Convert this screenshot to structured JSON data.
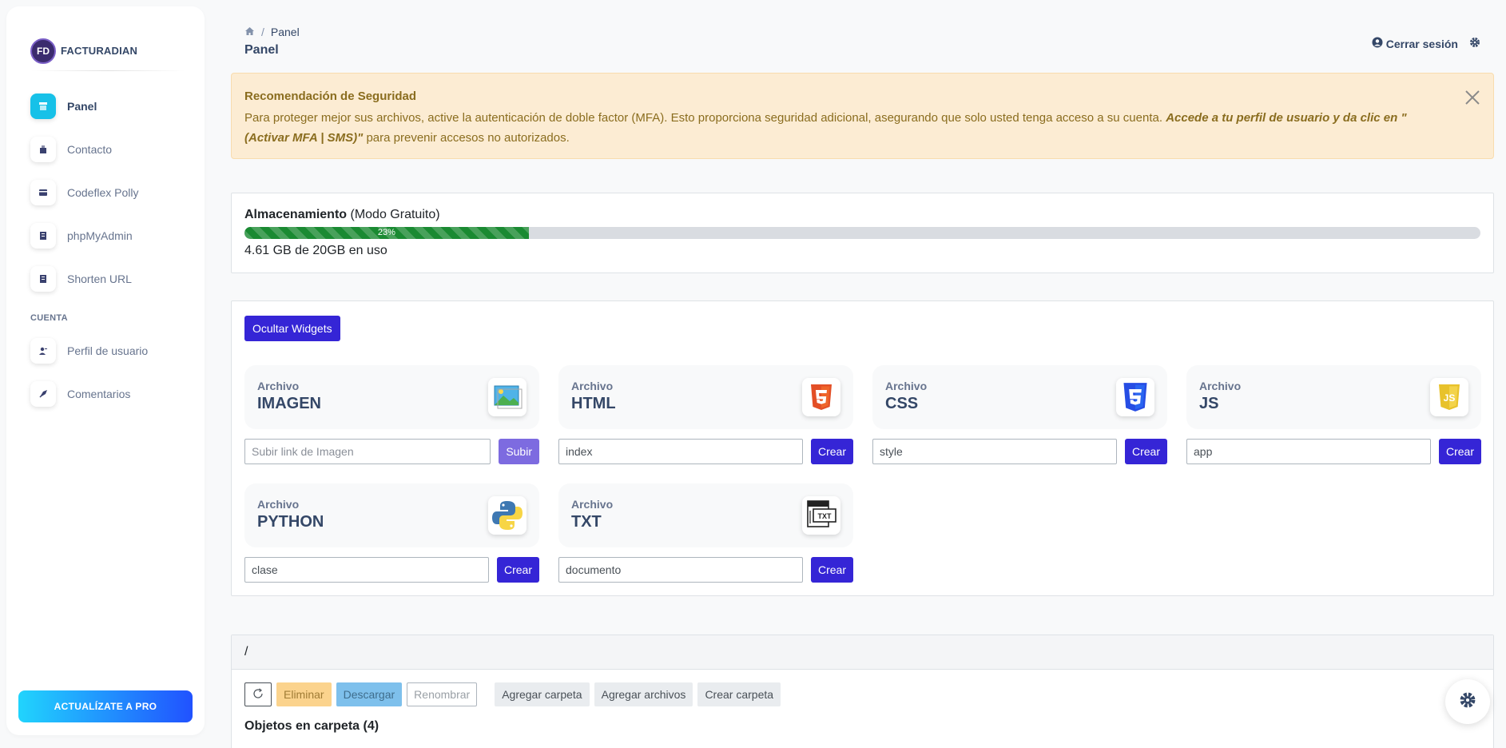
{
  "brand": {
    "logo_text": "FD",
    "name": "FACTURADIAN"
  },
  "sidebar": {
    "items": [
      {
        "label": "Panel",
        "icon": "shop-icon",
        "active": true
      },
      {
        "label": "Contacto",
        "icon": "office-icon"
      },
      {
        "label": "Codeflex Polly",
        "icon": "credit-card-icon"
      },
      {
        "label": "phpMyAdmin",
        "icon": "document-icon"
      },
      {
        "label": "Shorten URL",
        "icon": "document-icon"
      }
    ],
    "section_label": "CUENTA",
    "account_items": [
      {
        "label": "Perfil de usuario",
        "icon": "user-icon"
      },
      {
        "label": "Comentarios",
        "icon": "rocket-icon"
      }
    ],
    "upgrade_label": "ACTUALÍZATE A PRO"
  },
  "header": {
    "breadcrumb_current": "Panel",
    "breadcrumb_separator": "/",
    "page_title": "Panel",
    "logout_label": "Cerrar sesión"
  },
  "alert": {
    "title": "Recomendación de Seguridad",
    "text": "Para proteger mejor sus archivos, active la autenticación de doble factor (MFA). Esto proporciona seguridad adicional, asegurando que solo usted tenga acceso a su cuenta. ",
    "emphasis": "Accede a tu perfil de usuario y da clic en \"(Activar MFA | SMS)\"",
    "text_end": " para prevenir accesos no autorizados."
  },
  "storage": {
    "title": "Almacenamiento",
    "mode": "(Modo Gratuito)",
    "percent_label": "23%",
    "percent": 23,
    "usage": "4.61 GB de 20GB en uso"
  },
  "widgets": {
    "toggle_label": "Ocultar Widgets",
    "items": [
      {
        "small": "Archivo",
        "type": "IMAGEN",
        "icon": "image-file-icon",
        "value": "",
        "placeholder": "Subir link de Imagen",
        "button": "Subir"
      },
      {
        "small": "Archivo",
        "type": "HTML",
        "icon": "html5-icon",
        "value": "index",
        "placeholder": "",
        "button": "Crear"
      },
      {
        "small": "Archivo",
        "type": "CSS",
        "icon": "css3-icon",
        "value": "style",
        "placeholder": "",
        "button": "Crear"
      },
      {
        "small": "Archivo",
        "type": "JS",
        "icon": "javascript-icon",
        "value": "app",
        "placeholder": "",
        "button": "Crear"
      },
      {
        "small": "Archivo",
        "type": "PYTHON",
        "icon": "python-icon",
        "value": "clase",
        "placeholder": "",
        "button": "Crear"
      },
      {
        "small": "Archivo",
        "type": "TXT",
        "icon": "txt-file-icon",
        "value": "documento",
        "placeholder": "",
        "button": "Crear"
      }
    ]
  },
  "files": {
    "path": "/",
    "toolbar": {
      "delete": "Eliminar",
      "download": "Descargar",
      "rename": "Renombrar",
      "add_folder": "Agregar carpeta",
      "add_files": "Agregar archivos",
      "create_folder": "Crear carpeta"
    },
    "objects_label": "Objetos en carpeta (4)"
  },
  "colors": {
    "primary": "#3525d6",
    "accent": "#17c1e8",
    "alert_bg": "#fcecd3",
    "progress": "#1a8a32"
  }
}
